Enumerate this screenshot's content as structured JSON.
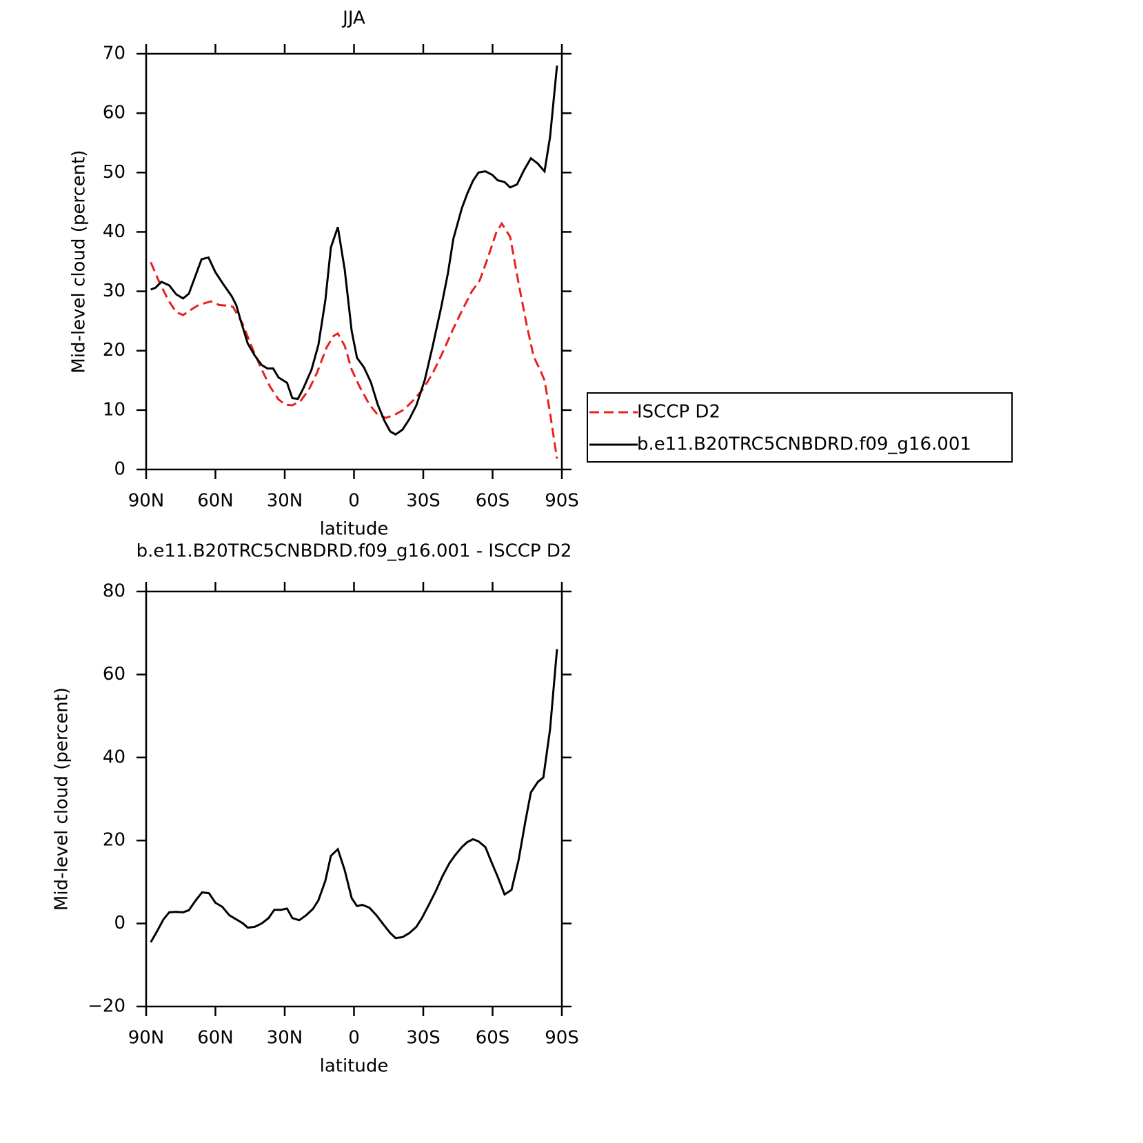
{
  "chart_data": [
    {
      "type": "line",
      "title": "JJA",
      "xlabel": "latitude",
      "ylabel": "Mid-level cloud (percent)",
      "xlim": [
        90,
        -90
      ],
      "ylim": [
        0,
        70
      ],
      "xticks": [
        {
          "value": 90,
          "label": "90N"
        },
        {
          "value": 60,
          "label": "60N"
        },
        {
          "value": 30,
          "label": "30N"
        },
        0,
        {
          "value": -30,
          "label": "30S"
        },
        {
          "value": -60,
          "label": "60S"
        },
        {
          "value": -90,
          "label": "90S"
        }
      ],
      "yticks": [
        0,
        10,
        20,
        30,
        40,
        50,
        60,
        70
      ],
      "legend": "right",
      "series": [
        {
          "name": "ISCCP D2",
          "color": "#e8201f",
          "style": "dashed",
          "x": [
            88,
            84.6,
            80.4,
            77,
            74,
            71,
            67.3,
            62,
            58.4,
            55.4,
            52.4,
            48.2,
            44,
            40.4,
            36.3,
            32.7,
            29.7,
            26.7,
            23,
            19.6,
            16,
            11.8,
            8.8,
            7,
            4,
            1,
            -2.5,
            -6.7,
            -10.3,
            -13.9,
            -17.5,
            -21.7,
            -25.8,
            -30,
            -34.2,
            -38.4,
            -42.5,
            -46.7,
            -50.9,
            -54.5,
            -58,
            -61.6,
            -64,
            -67.6,
            -71.2,
            -74.8,
            -77.8,
            -80.8,
            -82.5,
            -84.9,
            -87.9
          ],
          "values": [
            34.9,
            31.8,
            28.5,
            26.5,
            26,
            26.8,
            27.7,
            28.3,
            27.7,
            27.6,
            27.4,
            24.5,
            20.4,
            17.2,
            13.9,
            11.8,
            10.9,
            10.8,
            11.6,
            13.4,
            16.3,
            20.6,
            22.5,
            22.9,
            20.8,
            16.8,
            13.9,
            10.9,
            9.2,
            8.7,
            9.2,
            10.1,
            11.7,
            13.6,
            16.3,
            19.7,
            23.3,
            26.7,
            29.9,
            31.9,
            35.7,
            39.9,
            41.4,
            39.2,
            31.5,
            24.3,
            19,
            16.6,
            15,
            9.5,
            1.8
          ]
        },
        {
          "name": "b.e11.B20TRC5CNBDRD.f09_g16.001",
          "color": "#000000",
          "style": "solid",
          "x": [
            88,
            86,
            83.4,
            80,
            77,
            74,
            71.5,
            68,
            66,
            63,
            60,
            56.6,
            53,
            51,
            49,
            46,
            43,
            40,
            37.5,
            35,
            32.7,
            29,
            26.7,
            24.3,
            22,
            18.4,
            15.4,
            12.4,
            10,
            7,
            4,
            1,
            -1.3,
            -4.3,
            -7.3,
            -10.3,
            -13.3,
            -15.7,
            -18,
            -21,
            -24,
            -27,
            -30.6,
            -34.2,
            -37.8,
            -40.7,
            -43,
            -46.7,
            -49,
            -51.5,
            -53.9,
            -56.9,
            -59.9,
            -62.2,
            -65.2,
            -67.6,
            -70.6,
            -73.6,
            -76.6,
            -79.6,
            -82.5,
            -84.9,
            -87.9
          ],
          "values": [
            30.3,
            30.6,
            31.6,
            31,
            29.5,
            28.8,
            29.6,
            33.3,
            35.4,
            35.7,
            33.2,
            31.2,
            29.2,
            27.7,
            25,
            21.2,
            19.2,
            17.6,
            17,
            17,
            15.5,
            14.6,
            12,
            11.9,
            13.6,
            16.8,
            21,
            28.5,
            37.4,
            40.8,
            33.6,
            23.3,
            18.8,
            17.2,
            14.7,
            10.9,
            8.1,
            6.4,
            5.9,
            6.7,
            8.5,
            10.8,
            15,
            21,
            27.4,
            33.1,
            38.8,
            44,
            46.4,
            48.6,
            50,
            50.2,
            49.6,
            48.7,
            48.4,
            47.5,
            48,
            50.4,
            52.4,
            51.5,
            50.2,
            56,
            68
          ]
        }
      ]
    },
    {
      "type": "line",
      "title": "b.e11.B20TRC5CNBDRD.f09_g16.001 - ISCCP D2",
      "xlabel": "latitude",
      "ylabel": "Mid-level cloud (percent)",
      "xlim": [
        90,
        -90
      ],
      "ylim": [
        -20,
        80
      ],
      "xticks": [
        {
          "value": 90,
          "label": "90N"
        },
        {
          "value": 60,
          "label": "60N"
        },
        {
          "value": 30,
          "label": "30N"
        },
        0,
        {
          "value": -30,
          "label": "30S"
        },
        {
          "value": -60,
          "label": "60S"
        },
        {
          "value": -90,
          "label": "90S"
        }
      ],
      "yticks": [
        {
          "value": -20,
          "label": "−20"
        },
        0,
        20,
        40,
        60,
        80
      ],
      "series": [
        {
          "color": "#000000",
          "style": "solid",
          "x": [
            88,
            85.2,
            82.5,
            80,
            77,
            74,
            71.5,
            68.5,
            65.8,
            62.8,
            60,
            57,
            54,
            51,
            48,
            46,
            43,
            40,
            37,
            34.5,
            31.6,
            29,
            26.7,
            23.7,
            20.7,
            17.8,
            15.4,
            12.4,
            10,
            7,
            4,
            1,
            -1.3,
            -3.6,
            -6.7,
            -9.7,
            -12.7,
            -15.7,
            -18,
            -21,
            -24,
            -27,
            -29.4,
            -32.4,
            -35.4,
            -38.4,
            -41.3,
            -43.7,
            -46.7,
            -49,
            -51.5,
            -53.9,
            -56.9,
            -59.3,
            -62.2,
            -65.2,
            -68.2,
            -71.2,
            -74.2,
            -76.6,
            -79.6,
            -82,
            -84.9,
            -87.9
          ],
          "values": [
            -4.5,
            -1.8,
            1,
            2.7,
            2.8,
            2.7,
            3.2,
            5.6,
            7.5,
            7.3,
            5,
            4,
            2,
            1,
            0,
            -1,
            -0.8,
            0,
            1.3,
            3.3,
            3.3,
            3.6,
            1.3,
            0.8,
            2,
            3.5,
            5.6,
            10.3,
            16.3,
            17.9,
            12.8,
            6.1,
            4.2,
            4.5,
            3.8,
            2,
            -0.2,
            -2.3,
            -3.5,
            -3.3,
            -2.3,
            -0.8,
            1.3,
            4.5,
            7.8,
            11.5,
            14.5,
            16.4,
            18.4,
            19.6,
            20.3,
            19.8,
            18.4,
            15.1,
            11.3,
            7,
            8.1,
            15.1,
            24.6,
            31.6,
            34.1,
            35.2,
            46.8,
            66.1
          ]
        }
      ]
    }
  ]
}
